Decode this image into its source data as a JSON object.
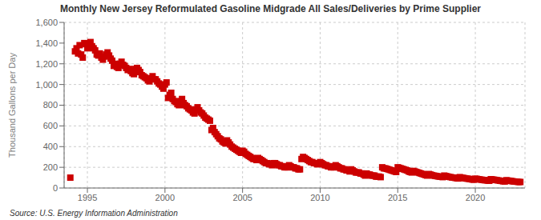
{
  "chart_data": {
    "type": "scatter",
    "title": "Monthly New Jersey Reformulated Gasoline Midgrade All Sales/Deliveries by Prime Supplier",
    "ylabel": "Thousand Gallons per Day",
    "source": "Source: U.S. Energy Information Administration",
    "color": "#cc0000",
    "marker": "square",
    "grid": true,
    "xlim": [
      1993.5,
      2023.2
    ],
    "xticks": [
      1995,
      2000,
      2005,
      2010,
      2015,
      2020
    ],
    "ylim": [
      0,
      1600
    ],
    "yticks": [
      0,
      200,
      400,
      600,
      800,
      {
        "value": 1000,
        "label": "1,000"
      },
      {
        "value": 1200,
        "label": "1,200"
      },
      {
        "value": 1400,
        "label": "1,400"
      },
      {
        "value": 1600,
        "label": "1,600"
      }
    ],
    "x": [
      1993.9,
      1994.2,
      1994.3,
      1994.4,
      1994.5,
      1994.6,
      1994.7,
      1994.8,
      1994.9,
      1995.0,
      1995.1,
      1995.2,
      1995.3,
      1995.4,
      1995.5,
      1995.6,
      1995.7,
      1995.8,
      1995.9,
      1996.0,
      1996.1,
      1996.2,
      1996.3,
      1996.4,
      1996.5,
      1996.6,
      1996.7,
      1996.8,
      1996.9,
      1997.0,
      1997.1,
      1997.2,
      1997.3,
      1997.4,
      1997.5,
      1997.6,
      1997.7,
      1997.8,
      1997.9,
      1998.0,
      1998.1,
      1998.2,
      1998.3,
      1998.4,
      1998.5,
      1998.6,
      1998.7,
      1998.8,
      1998.9,
      1999.0,
      1999.1,
      1999.2,
      1999.3,
      1999.4,
      1999.5,
      1999.6,
      1999.7,
      1999.8,
      1999.9,
      2000.0,
      2000.1,
      2000.2,
      2000.3,
      2000.4,
      2000.5,
      2000.6,
      2000.7,
      2000.8,
      2000.9,
      2001.0,
      2001.1,
      2001.2,
      2001.3,
      2001.4,
      2001.5,
      2001.6,
      2001.7,
      2001.8,
      2001.9,
      2002.0,
      2002.1,
      2002.2,
      2002.3,
      2002.4,
      2002.5,
      2002.6,
      2002.7,
      2002.8,
      2002.9,
      2003.0,
      2003.1,
      2003.2,
      2003.3,
      2003.4,
      2003.5,
      2003.6,
      2003.7,
      2003.8,
      2003.9,
      2004.0,
      2004.1,
      2004.2,
      2004.3,
      2004.4,
      2004.5,
      2004.6,
      2004.7,
      2004.8,
      2004.9,
      2005.0,
      2005.1,
      2005.2,
      2005.3,
      2005.4,
      2005.5,
      2005.6,
      2005.7,
      2005.8,
      2005.9,
      2006.0,
      2006.1,
      2006.2,
      2006.3,
      2006.4,
      2006.5,
      2006.6,
      2006.7,
      2006.8,
      2006.9,
      2007.0,
      2007.1,
      2007.2,
      2007.3,
      2007.4,
      2007.5,
      2007.6,
      2007.7,
      2007.8,
      2007.9,
      2008.0,
      2008.1,
      2008.2,
      2008.3,
      2008.4,
      2008.5,
      2008.6,
      2008.7,
      2008.8,
      2008.9,
      2009.0,
      2009.1,
      2009.2,
      2009.3,
      2009.4,
      2009.5,
      2009.6,
      2009.7,
      2009.8,
      2009.9,
      2010.0,
      2010.1,
      2010.2,
      2010.3,
      2010.4,
      2010.5,
      2010.6,
      2010.7,
      2010.8,
      2010.9,
      2011.0,
      2011.1,
      2011.2,
      2011.3,
      2011.4,
      2011.5,
      2011.6,
      2011.7,
      2011.8,
      2011.9,
      2012.0,
      2012.1,
      2012.2,
      2012.3,
      2012.4,
      2012.5,
      2012.6,
      2012.7,
      2012.8,
      2012.9,
      2013.0,
      2013.1,
      2013.2,
      2013.3,
      2013.4,
      2013.5,
      2013.6,
      2013.7,
      2013.8,
      2013.9,
      2014.0,
      2014.1,
      2014.2,
      2014.3,
      2014.4,
      2014.5,
      2014.6,
      2014.7,
      2014.8,
      2014.9,
      2015.0,
      2015.1,
      2015.2,
      2015.3,
      2015.4,
      2015.5,
      2015.6,
      2015.7,
      2015.8,
      2015.9,
      2016.0,
      2016.1,
      2016.2,
      2016.3,
      2016.4,
      2016.5,
      2016.6,
      2016.7,
      2016.8,
      2016.9,
      2017.0,
      2017.1,
      2017.2,
      2017.3,
      2017.4,
      2017.5,
      2017.6,
      2017.7,
      2017.8,
      2017.9,
      2018.0,
      2018.1,
      2018.2,
      2018.3,
      2018.4,
      2018.5,
      2018.6,
      2018.7,
      2018.8,
      2018.9,
      2019.0,
      2019.1,
      2019.2,
      2019.3,
      2019.4,
      2019.5,
      2019.6,
      2019.7,
      2019.8,
      2019.9,
      2020.0,
      2020.1,
      2020.2,
      2020.3,
      2020.4,
      2020.5,
      2020.6,
      2020.7,
      2020.8,
      2020.9,
      2021.0,
      2021.1,
      2021.2,
      2021.3,
      2021.4,
      2021.5,
      2021.6,
      2021.7,
      2021.8,
      2021.9,
      2022.0,
      2022.1,
      2022.2,
      2022.3,
      2022.4,
      2022.5,
      2022.6,
      2022.7,
      2022.8,
      2022.9
    ],
    "values": [
      100,
      1320,
      1350,
      1300,
      1380,
      1290,
      1260,
      1400,
      1390,
      1350,
      1380,
      1410,
      1370,
      1350,
      1330,
      1290,
      1280,
      1300,
      1260,
      1240,
      1270,
      1290,
      1310,
      1280,
      1250,
      1230,
      1180,
      1200,
      1170,
      1160,
      1200,
      1220,
      1190,
      1180,
      1160,
      1140,
      1150,
      1130,
      1110,
      1100,
      1150,
      1160,
      1140,
      1120,
      1090,
      1080,
      1070,
      1060,
      1040,
      1030,
      1060,
      1080,
      1050,
      1050,
      1030,
      1010,
      1000,
      980,
      960,
      1000,
      1020,
      870,
      900,
      920,
      860,
      840,
      830,
      810,
      800,
      840,
      860,
      820,
      800,
      790,
      770,
      760,
      750,
      730,
      720,
      760,
      780,
      750,
      730,
      720,
      700,
      680,
      670,
      660,
      650,
      560,
      580,
      540,
      520,
      500,
      480,
      470,
      450,
      440,
      430,
      460,
      440,
      420,
      400,
      390,
      380,
      370,
      360,
      350,
      340,
      360,
      350,
      330,
      320,
      310,
      300,
      290,
      280,
      280,
      270,
      290,
      280,
      270,
      260,
      250,
      240,
      240,
      230,
      230,
      220,
      240,
      240,
      230,
      220,
      220,
      210,
      210,
      200,
      200,
      200,
      220,
      210,
      200,
      200,
      190,
      190,
      180,
      180,
      280,
      300,
      290,
      280,
      270,
      260,
      250,
      250,
      240,
      240,
      230,
      230,
      250,
      240,
      230,
      220,
      220,
      210,
      210,
      200,
      200,
      200,
      220,
      210,
      200,
      190,
      190,
      180,
      180,
      170,
      170,
      160,
      180,
      170,
      160,
      150,
      150,
      150,
      140,
      140,
      130,
      120,
      140,
      130,
      130,
      120,
      120,
      120,
      110,
      110,
      110,
      105,
      200,
      190,
      190,
      185,
      180,
      175,
      170,
      165,
      160,
      155,
      200,
      195,
      190,
      185,
      180,
      175,
      170,
      160,
      155,
      150,
      165,
      160,
      155,
      150,
      145,
      140,
      135,
      130,
      125,
      120,
      135,
      130,
      125,
      120,
      118,
      115,
      112,
      110,
      108,
      105,
      120,
      115,
      112,
      108,
      105,
      102,
      100,
      98,
      95,
      92,
      105,
      100,
      98,
      95,
      92,
      90,
      88,
      85,
      82,
      80,
      90,
      88,
      85,
      82,
      80,
      78,
      75,
      75,
      72,
      70,
      85,
      82,
      80,
      78,
      75,
      73,
      70,
      68,
      65,
      63,
      75,
      72,
      70,
      68,
      65,
      63,
      62,
      60,
      58,
      58
    ]
  }
}
